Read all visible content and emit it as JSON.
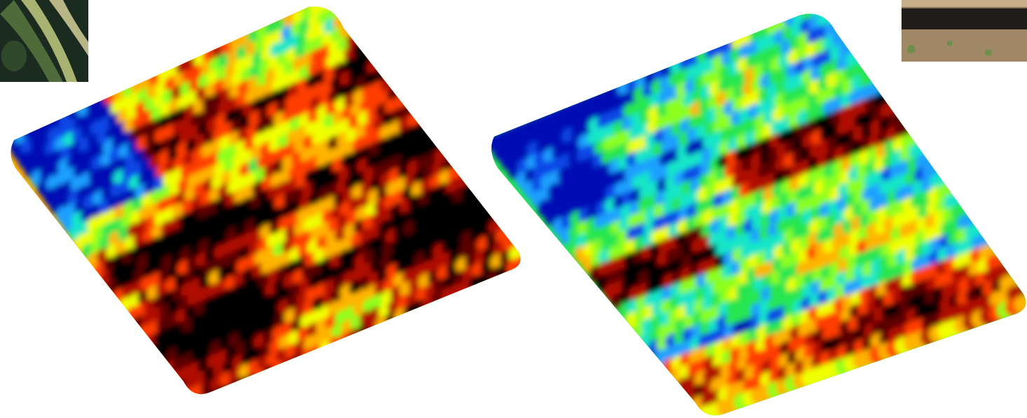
{
  "scene": {
    "background": "#ffffff",
    "thumbnails": [
      {
        "name": "plant-photo-thumbnail",
        "colors": [
          "#1c2b1f",
          "#4f6b3a",
          "#b8c27a",
          "#e0d8a0"
        ]
      },
      {
        "name": "soil-photo-thumbnail",
        "colors": [
          "#2a2622",
          "#8a7458",
          "#c8b08c",
          "#6f8f4a"
        ]
      }
    ],
    "maps": [
      {
        "name": "field-map-left",
        "palette": "jet",
        "dominant": "warm"
      },
      {
        "name": "field-map-right",
        "palette": "jet",
        "dominant": "cool"
      }
    ],
    "colormap": [
      "#000000",
      "#5a0000",
      "#b01000",
      "#ff3c00",
      "#ffb400",
      "#f0ff00",
      "#8cff1e",
      "#28e650",
      "#14e6c8",
      "#1ea0ff",
      "#0a46e6",
      "#0010b4"
    ]
  }
}
